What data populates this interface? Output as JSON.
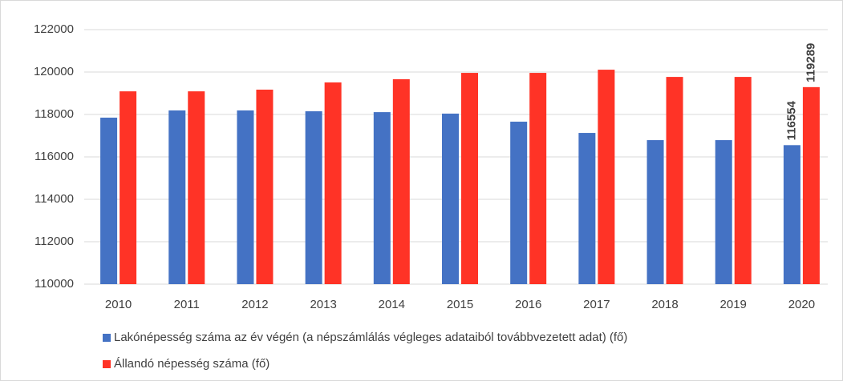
{
  "chart_data": {
    "type": "bar",
    "categories": [
      "2010",
      "2011",
      "2012",
      "2013",
      "2014",
      "2015",
      "2016",
      "2017",
      "2018",
      "2019",
      "2020"
    ],
    "series": [
      {
        "name": "Lakónépesség száma az év végén (a népszámlálás végleges adataiból továbbvezetett adat) (fő)",
        "color": "#4472c4",
        "values": [
          117850,
          118190,
          118190,
          118150,
          118110,
          118040,
          117660,
          117130,
          116790,
          116790,
          116554
        ],
        "value_labels": [
          null,
          null,
          null,
          null,
          null,
          null,
          null,
          null,
          null,
          null,
          "116554"
        ]
      },
      {
        "name": "Állandó népesség száma (fő)",
        "color": "#ff3326",
        "values": [
          119090,
          119090,
          119170,
          119510,
          119660,
          119960,
          119960,
          120110,
          119770,
          119770,
          119289
        ],
        "value_labels": [
          null,
          null,
          null,
          null,
          null,
          null,
          null,
          null,
          null,
          null,
          "119289"
        ]
      }
    ],
    "ylim": [
      110000,
      122000
    ],
    "yticks": [
      110000,
      112000,
      114000,
      116000,
      118000,
      120000,
      122000
    ],
    "grid": true,
    "legend": "bottom"
  }
}
